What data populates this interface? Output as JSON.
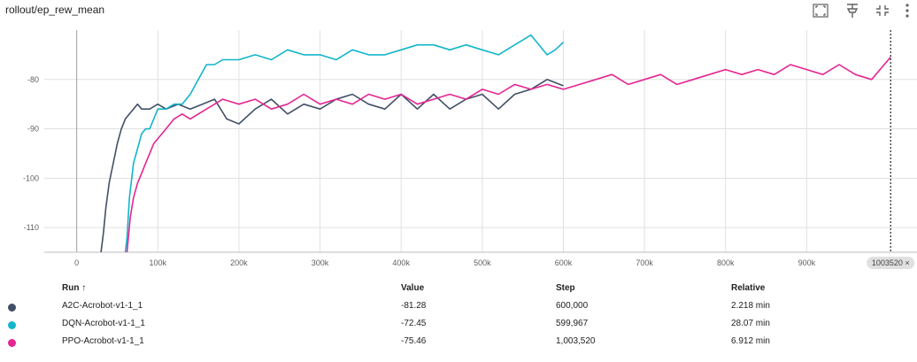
{
  "header": {
    "title": "rollout/ep_rew_mean",
    "icons": [
      "fit-domain-icon",
      "pin-icon",
      "collapse-icon",
      "more-icon"
    ]
  },
  "chart_data": {
    "type": "line",
    "title": "rollout/ep_rew_mean",
    "xlim": [
      -40000,
      1036000
    ],
    "ylim": [
      -115,
      -70
    ],
    "x_ticks": [
      0,
      100000,
      200000,
      300000,
      400000,
      500000,
      600000,
      700000,
      800000,
      900000
    ],
    "x_tick_labels": [
      "0",
      "100k",
      "200k",
      "300k",
      "400k",
      "500k",
      "600k",
      "700k",
      "800k",
      "900k"
    ],
    "y_ticks": [
      -80,
      -90,
      -100,
      -110
    ],
    "y_tick_labels": [
      "-80",
      "-90",
      "-100",
      "-110"
    ],
    "grid": true,
    "cursor": {
      "x": 1003520,
      "label": "1003520 ×"
    },
    "series": [
      {
        "name": "A2C-Acrobot-v1-1_1",
        "color": "#425066",
        "x": [
          30000,
          33000,
          36000,
          40000,
          45000,
          50000,
          55000,
          60000,
          65000,
          70000,
          75000,
          80000,
          90000,
          100000,
          110000,
          125000,
          140000,
          155000,
          170000,
          185000,
          200000,
          220000,
          240000,
          260000,
          280000,
          300000,
          320000,
          340000,
          360000,
          380000,
          400000,
          420000,
          440000,
          460000,
          480000,
          500000,
          520000,
          540000,
          560000,
          580000,
          600000
        ],
        "y": [
          -115,
          -111,
          -106,
          -101,
          -97,
          -93,
          -90,
          -88,
          -87,
          -86,
          -85,
          -86,
          -86,
          -85,
          -86,
          -85,
          -86,
          -85,
          -84,
          -88,
          -89,
          -86,
          -84,
          -87,
          -85,
          -86,
          -84,
          -83,
          -85,
          -86,
          -83,
          -86,
          -83,
          -86,
          -84,
          -83,
          -86,
          -83,
          -82,
          -80,
          -81.28
        ]
      },
      {
        "name": "DQN-Acrobot-v1-1_1",
        "color": "#12b5cb",
        "x": [
          60000,
          62000,
          65000,
          70000,
          75000,
          80000,
          85000,
          90000,
          95000,
          100000,
          110000,
          120000,
          130000,
          140000,
          150000,
          160000,
          170000,
          180000,
          200000,
          220000,
          240000,
          260000,
          280000,
          300000,
          320000,
          340000,
          360000,
          380000,
          400000,
          420000,
          440000,
          460000,
          480000,
          500000,
          520000,
          540000,
          550000,
          560000,
          570000,
          580000,
          590000,
          600000
        ],
        "y": [
          -115,
          -112,
          -104,
          -97,
          -94,
          -91,
          -90,
          -90,
          -88,
          -86,
          -86,
          -85,
          -85,
          -83,
          -80,
          -77,
          -77,
          -76,
          -76,
          -75,
          -76,
          -74,
          -75,
          -75,
          -76,
          -74,
          -75,
          -75,
          -74,
          -73,
          -73,
          -74,
          -73,
          -74,
          -75,
          -73,
          -72,
          -71,
          -73,
          -75,
          -74,
          -72.45
        ]
      },
      {
        "name": "PPO-Acrobot-v1-1_1",
        "color": "#e52592",
        "x": [
          62000,
          66000,
          70000,
          75000,
          80000,
          85000,
          90000,
          95000,
          100000,
          110000,
          120000,
          130000,
          140000,
          150000,
          160000,
          170000,
          180000,
          200000,
          220000,
          240000,
          260000,
          280000,
          300000,
          320000,
          340000,
          360000,
          380000,
          400000,
          420000,
          440000,
          460000,
          480000,
          500000,
          520000,
          540000,
          560000,
          580000,
          600000,
          620000,
          640000,
          660000,
          680000,
          700000,
          720000,
          740000,
          760000,
          780000,
          800000,
          820000,
          840000,
          860000,
          880000,
          900000,
          920000,
          940000,
          960000,
          980000,
          1003520
        ],
        "y": [
          -115,
          -108,
          -104,
          -101,
          -99,
          -97,
          -95,
          -93,
          -92,
          -90,
          -88,
          -87,
          -88,
          -87,
          -86,
          -85,
          -84,
          -85,
          -84,
          -86,
          -85,
          -83,
          -85,
          -84,
          -85,
          -83,
          -84,
          -83,
          -85,
          -84,
          -83,
          -84,
          -82,
          -83,
          -81,
          -82,
          -81,
          -82,
          -81,
          -80,
          -79,
          -81,
          -80,
          -79,
          -81,
          -80,
          -79,
          -78,
          -79,
          -78,
          -79,
          -77,
          -78,
          -79,
          -77,
          -79,
          -80,
          -75.46
        ]
      }
    ]
  },
  "table": {
    "headers": {
      "run": "Run ↑",
      "value": "Value",
      "step": "Step",
      "relative": "Relative"
    },
    "rows": [
      {
        "color": "#425066",
        "run": "A2C-Acrobot-v1-1_1",
        "value": "-81.28",
        "step": "600,000",
        "relative": "2.218 min"
      },
      {
        "color": "#12b5cb",
        "run": "DQN-Acrobot-v1-1_1",
        "value": "-72.45",
        "step": "599,967",
        "relative": "28.07 min"
      },
      {
        "color": "#e52592",
        "run": "PPO-Acrobot-v1-1_1",
        "value": "-75.46",
        "step": "1,003,520",
        "relative": "6.912 min"
      }
    ]
  }
}
